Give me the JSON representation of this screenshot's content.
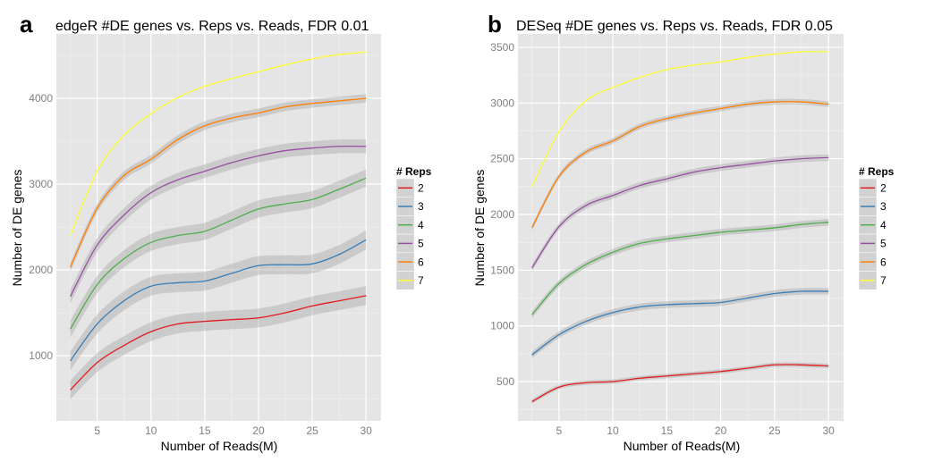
{
  "chart_data": [
    {
      "type": "line",
      "panel_label": "a",
      "title": "edgeR #DE genes vs. Reps vs. Reads, FDR 0.01",
      "xlabel": "Number of Reads(M)",
      "ylabel": "Number of DE genes",
      "xlim": [
        1.2,
        31.4
      ],
      "ylim": [
        240,
        4750
      ],
      "xticks": [
        5,
        10,
        15,
        20,
        25,
        30
      ],
      "yticks": [
        1000,
        2000,
        3000,
        4000
      ],
      "grid": true,
      "legend": {
        "title": "# Reps",
        "placement": "right"
      },
      "x": [
        2.5,
        5,
        7.5,
        10,
        12.5,
        15,
        17.5,
        20,
        22.5,
        25,
        27.5,
        30
      ],
      "series": [
        {
          "name": "2",
          "color": "#e41a1c",
          "band": 110,
          "values": [
            600,
            920,
            1120,
            1280,
            1370,
            1400,
            1420,
            1440,
            1500,
            1580,
            1640,
            1700
          ]
        },
        {
          "name": "3",
          "color": "#377eb8",
          "band": 110,
          "values": [
            940,
            1370,
            1640,
            1810,
            1850,
            1870,
            1960,
            2050,
            2060,
            2070,
            2180,
            2350
          ]
        },
        {
          "name": "4",
          "color": "#4daf4a",
          "band": 100,
          "values": [
            1310,
            1830,
            2130,
            2320,
            2400,
            2450,
            2580,
            2710,
            2770,
            2820,
            2940,
            3070
          ]
        },
        {
          "name": "5",
          "color": "#984ea3",
          "band": 80,
          "values": [
            1690,
            2290,
            2640,
            2900,
            3050,
            3150,
            3250,
            3330,
            3390,
            3420,
            3440,
            3440
          ]
        },
        {
          "name": "6",
          "color": "#ff7f00",
          "band": 50,
          "values": [
            2030,
            2720,
            3100,
            3290,
            3520,
            3680,
            3770,
            3830,
            3900,
            3940,
            3970,
            4000
          ]
        },
        {
          "name": "7",
          "color": "#ffff33",
          "band": 0,
          "values": [
            2400,
            3150,
            3570,
            3820,
            4010,
            4140,
            4230,
            4310,
            4390,
            4460,
            4510,
            4540
          ]
        }
      ]
    },
    {
      "type": "line",
      "panel_label": "b",
      "title": "DESeq #DE genes vs. Reps vs. Reads, FDR 0.05",
      "xlabel": "Number of Reads(M)",
      "ylabel": "Number of DE genes",
      "xlim": [
        1.2,
        31.4
      ],
      "ylim": [
        147,
        3620
      ],
      "xticks": [
        5,
        10,
        15,
        20,
        25,
        30
      ],
      "yticks": [
        500,
        1000,
        1500,
        2000,
        2500,
        3000,
        3500
      ],
      "grid": true,
      "legend": {
        "title": "# Reps",
        "placement": "right"
      },
      "x": [
        2.5,
        5,
        7.5,
        10,
        12.5,
        15,
        17.5,
        20,
        22.5,
        25,
        27.5,
        30
      ],
      "series": [
        {
          "name": "2",
          "color": "#e41a1c",
          "band": 20,
          "values": [
            320,
            450,
            490,
            500,
            530,
            550,
            570,
            590,
            620,
            650,
            650,
            640
          ]
        },
        {
          "name": "3",
          "color": "#377eb8",
          "band": 30,
          "values": [
            740,
            920,
            1040,
            1120,
            1170,
            1190,
            1200,
            1210,
            1250,
            1290,
            1310,
            1310
          ]
        },
        {
          "name": "4",
          "color": "#4daf4a",
          "band": 30,
          "values": [
            1100,
            1380,
            1550,
            1660,
            1740,
            1780,
            1810,
            1840,
            1860,
            1880,
            1910,
            1930
          ]
        },
        {
          "name": "5",
          "color": "#984ea3",
          "band": 30,
          "values": [
            1520,
            1890,
            2080,
            2170,
            2260,
            2320,
            2380,
            2420,
            2450,
            2480,
            2500,
            2510
          ]
        },
        {
          "name": "6",
          "color": "#ff7f00",
          "band": 25,
          "values": [
            1880,
            2340,
            2560,
            2660,
            2790,
            2860,
            2910,
            2950,
            2990,
            3010,
            3010,
            2990
          ]
        },
        {
          "name": "7",
          "color": "#ffff33",
          "band": 0,
          "values": [
            2250,
            2740,
            3020,
            3140,
            3230,
            3300,
            3340,
            3370,
            3410,
            3440,
            3460,
            3460
          ]
        }
      ]
    }
  ]
}
